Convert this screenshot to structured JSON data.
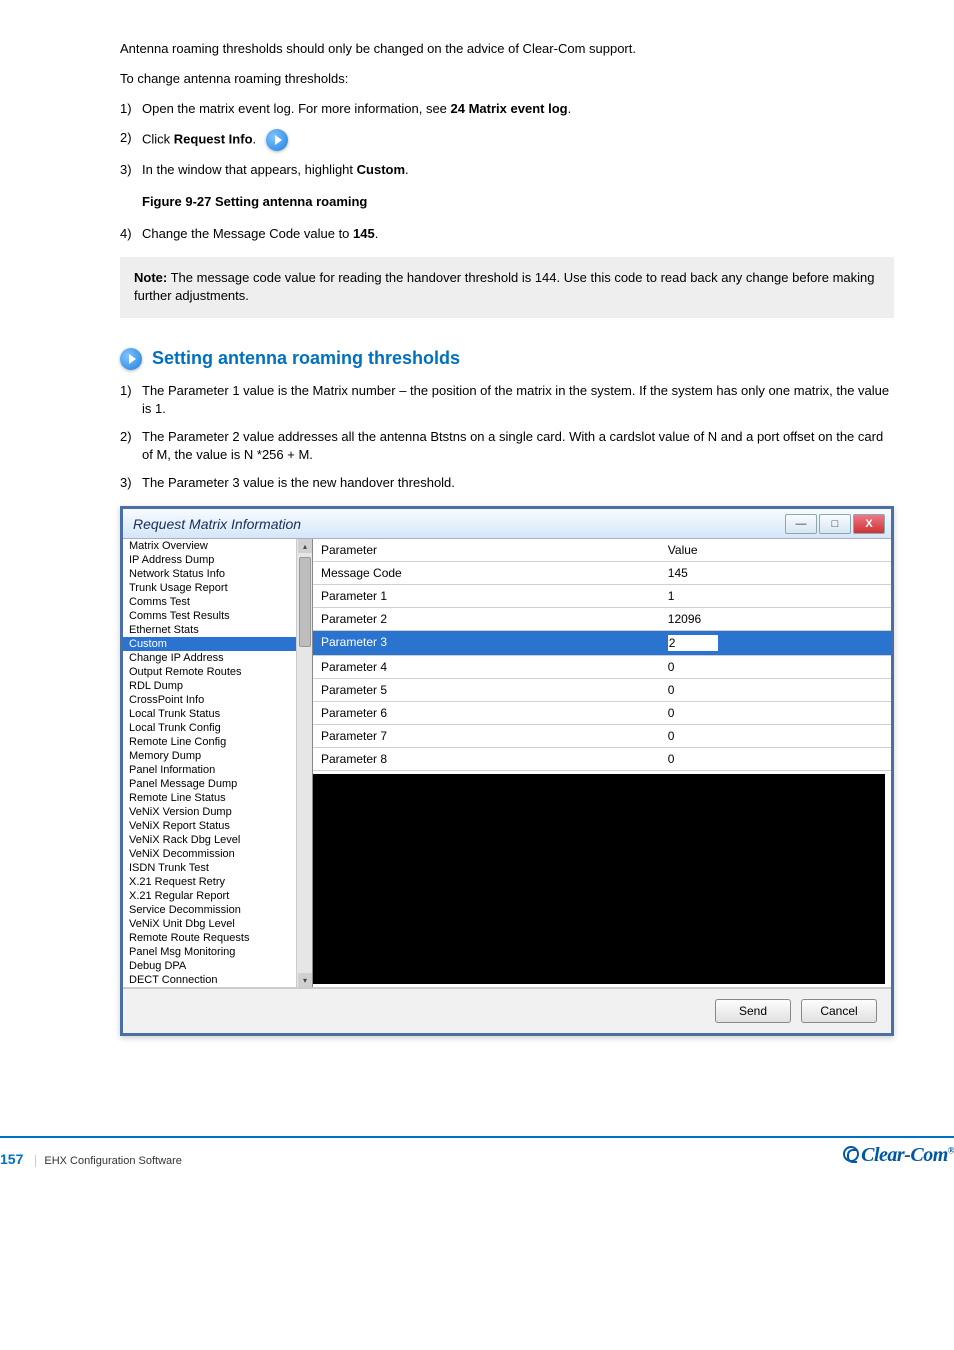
{
  "page": {
    "number": "157",
    "manual_title": "EHX Configuration Software",
    "logo_text": "Clear-Com"
  },
  "intro": {
    "text_1": "Antenna roaming thresholds should only be changed on the advice of Clear-Com support.",
    "text_2": "To change antenna roaming thresholds:"
  },
  "steps": {
    "s1_num": "1)",
    "s1": "Open the matrix event log. For more information, see ",
    "s1_link": "24 Matrix event log",
    "s1_after": ".",
    "s2_num": "2)",
    "s2": "Click ",
    "s2_bold": "Request Info",
    "s2_icon_note": ".",
    "s3_num": "3)",
    "s3": "In the window that appears, highlight ",
    "s3_bold": "Custom",
    "s3_caption": "Figure 9-27 Setting antenna roaming",
    "s4_num": "4)",
    "s4": "Change the Message Code value to ",
    "s4_bold": "145",
    "s4_after": "."
  },
  "note": {
    "label": "Note:",
    "text": "The message code value for reading the handover threshold is 144. Use this code to read back any change before making further adjustments."
  },
  "section_header": "Setting antenna roaming thresholds",
  "steps2": {
    "s1_num": "1)",
    "s1": "The Parameter 1 value is the Matrix number – the position of the matrix in the system. If the system has only one matrix, the value is 1.",
    "s2_num": "2)",
    "s2": "The Parameter 2 value addresses all the antenna Btstns on a single card. With a cardslot value of N and a port offset on the card of M, the value is N *256 + M.",
    "s3_num": "3)",
    "s3": "The Parameter 3 value is the new handover threshold."
  },
  "dialog": {
    "title": "Request Matrix Information",
    "sidebar_items": [
      "Matrix Overview",
      "IP Address Dump",
      "Network Status Info",
      "Trunk Usage Report",
      "Comms Test",
      "Comms Test Results",
      "Ethernet Stats",
      "Custom",
      "Change IP Address",
      "Output Remote Routes",
      "RDL Dump",
      "CrossPoint Info",
      "Local Trunk Status",
      "Local Trunk Config",
      "Remote Line Config",
      "Memory Dump",
      "Panel Information",
      "Panel Message Dump",
      "Remote Line Status",
      "VeNiX Version Dump",
      "VeNiX Report Status",
      "VeNiX Rack Dbg Level",
      "VeNiX Decommission",
      "ISDN Trunk Test",
      "X.21 Request Retry",
      "X.21 Regular Report",
      "Service Decommission",
      "VeNiX Unit Dbg Level",
      "Remote Route Requests",
      "Panel Msg Monitoring",
      "Debug DPA",
      "DECT Connection"
    ],
    "selected_index": 7,
    "header_param": "Parameter",
    "header_value": "Value",
    "rows": [
      {
        "param": "Message Code",
        "value": "145",
        "sel": false
      },
      {
        "param": "Parameter 1",
        "value": "1",
        "sel": false
      },
      {
        "param": "Parameter 2",
        "value": "12096",
        "sel": false
      },
      {
        "param": "Parameter 3",
        "value": "2",
        "sel": true
      },
      {
        "param": "Parameter 4",
        "value": "0",
        "sel": false
      },
      {
        "param": "Parameter 5",
        "value": "0",
        "sel": false
      },
      {
        "param": "Parameter 6",
        "value": "0",
        "sel": false
      },
      {
        "param": "Parameter 7",
        "value": "0",
        "sel": false
      },
      {
        "param": "Parameter 8",
        "value": "0",
        "sel": false
      }
    ],
    "btn_send": "Send",
    "btn_cancel": "Cancel"
  }
}
